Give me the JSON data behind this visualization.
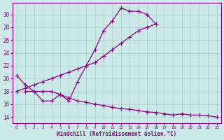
{
  "bg_color": "#cce8e8",
  "line_color": "#880088",
  "grid_color": "#aacccc",
  "xlabel": "Windchill (Refroidissement éolien,°C)",
  "xlim": [
    -0.5,
    23.5
  ],
  "ylim": [
    13.0,
    31.8
  ],
  "yticks": [
    14,
    16,
    18,
    20,
    22,
    24,
    26,
    28,
    30
  ],
  "xticks": [
    0,
    1,
    2,
    3,
    4,
    5,
    6,
    7,
    8,
    9,
    10,
    11,
    12,
    13,
    14,
    15,
    16,
    17,
    18,
    19,
    20,
    21,
    22,
    23
  ],
  "line1_x": [
    0,
    1,
    2,
    3,
    4,
    5,
    6,
    7,
    8,
    9,
    10,
    11,
    12,
    13,
    14,
    15,
    16
  ],
  "line1_y": [
    20.5,
    19.0,
    18.0,
    16.5,
    16.5,
    17.5,
    16.5,
    19.5,
    22.0,
    24.5,
    27.5,
    29.0,
    31.0,
    30.5,
    30.5,
    30.0,
    28.5
  ],
  "line2_x": [
    0,
    1,
    2,
    3,
    4,
    5,
    6,
    7,
    8,
    9,
    10,
    11,
    12,
    13,
    14,
    15,
    16
  ],
  "line2_y": [
    18.0,
    18.5,
    19.0,
    19.5,
    20.0,
    20.5,
    21.0,
    21.5,
    22.0,
    22.5,
    23.5,
    24.5,
    25.5,
    26.5,
    27.5,
    28.0,
    28.5
  ],
  "line3_x": [
    1,
    2,
    3,
    4,
    5,
    6,
    7,
    8,
    9,
    10,
    11,
    12,
    13,
    14,
    15,
    16,
    17,
    18,
    19,
    20,
    21,
    22,
    23
  ],
  "line3_y": [
    18.0,
    18.0,
    18.0,
    18.0,
    17.5,
    17.0,
    16.5,
    16.3,
    16.0,
    15.8,
    15.5,
    15.3,
    15.2,
    15.0,
    14.8,
    14.7,
    14.5,
    14.3,
    14.5,
    14.3,
    14.3,
    14.2,
    14.0
  ]
}
